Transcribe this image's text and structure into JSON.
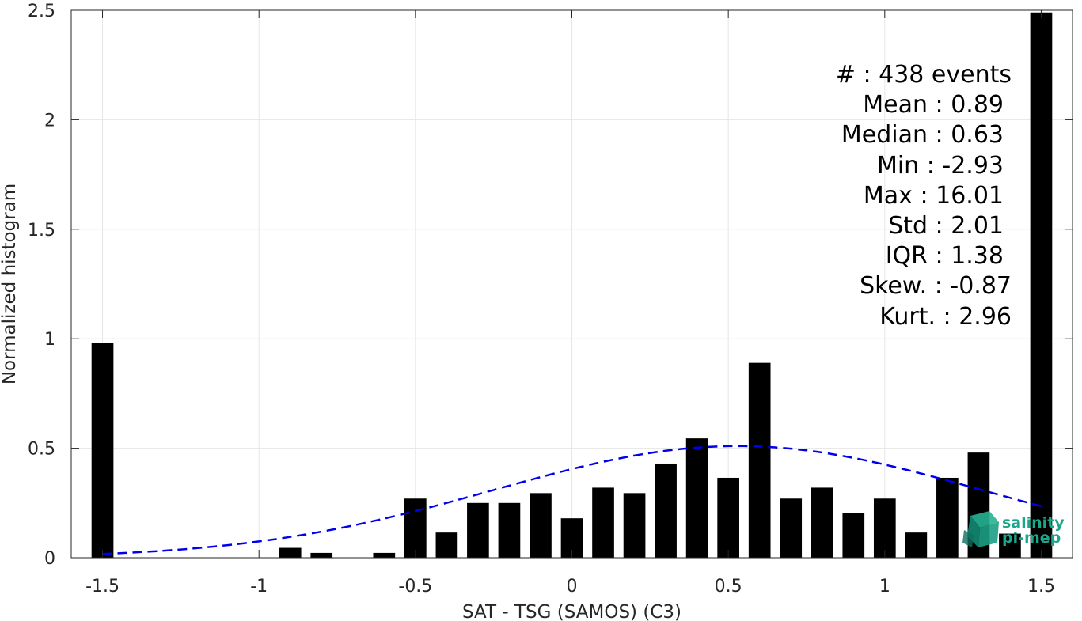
{
  "chart_data": {
    "type": "bar",
    "xlabel": "SAT - TSG (SAMOS) (C3)",
    "ylabel": "Normalized histogram",
    "xlim": [
      -1.6,
      1.6
    ],
    "ylim": [
      0,
      2.5
    ],
    "grid": true,
    "xticks": [
      -1.5,
      -1,
      -0.5,
      0,
      0.5,
      1,
      1.5
    ],
    "xtick_labels": [
      "-1.5",
      "-1",
      "-0.5",
      "0",
      "0.5",
      "1",
      "1.5"
    ],
    "yticks": [
      0,
      0.5,
      1,
      1.5,
      2,
      2.5
    ],
    "ytick_labels": [
      "0",
      "0.5",
      "1",
      "1.5",
      "2",
      "2.5"
    ],
    "bar_color": "#000000",
    "bar_width": 0.07,
    "bars": [
      {
        "x": -1.5,
        "y": 0.98
      },
      {
        "x": -0.9,
        "y": 0.045
      },
      {
        "x": -0.8,
        "y": 0.022
      },
      {
        "x": -0.6,
        "y": 0.022
      },
      {
        "x": -0.5,
        "y": 0.27
      },
      {
        "x": -0.4,
        "y": 0.115
      },
      {
        "x": -0.3,
        "y": 0.25
      },
      {
        "x": -0.2,
        "y": 0.25
      },
      {
        "x": -0.1,
        "y": 0.295
      },
      {
        "x": 0.0,
        "y": 0.18
      },
      {
        "x": 0.1,
        "y": 0.32
      },
      {
        "x": 0.2,
        "y": 0.295
      },
      {
        "x": 0.3,
        "y": 0.43
      },
      {
        "x": 0.4,
        "y": 0.545
      },
      {
        "x": 0.5,
        "y": 0.365
      },
      {
        "x": 0.6,
        "y": 0.89
      },
      {
        "x": 0.7,
        "y": 0.27
      },
      {
        "x": 0.8,
        "y": 0.32
      },
      {
        "x": 0.9,
        "y": 0.205
      },
      {
        "x": 1.0,
        "y": 0.27
      },
      {
        "x": 1.1,
        "y": 0.115
      },
      {
        "x": 1.2,
        "y": 0.365
      },
      {
        "x": 1.3,
        "y": 0.48
      },
      {
        "x": 1.4,
        "y": 0.11
      },
      {
        "x": 1.5,
        "y": 2.49
      }
    ],
    "fit_curve": {
      "style": "dashed",
      "color": "#0000ee",
      "mean": 0.53,
      "sigma": 0.78,
      "x_range": [
        -1.5,
        1.5
      ],
      "peak": 0.51
    },
    "annotations": [
      "#  : 438 events",
      "Mean : 0.89",
      "Median : 0.63",
      "Min : -2.93",
      "Max : 16.01",
      "Std : 2.01",
      "IQR : 1.38",
      "Skew. : -0.87",
      "Kurt. : 2.96"
    ]
  },
  "logo": {
    "line1": "salinity",
    "line2": "pi-mep",
    "color": "#1aa88c"
  }
}
